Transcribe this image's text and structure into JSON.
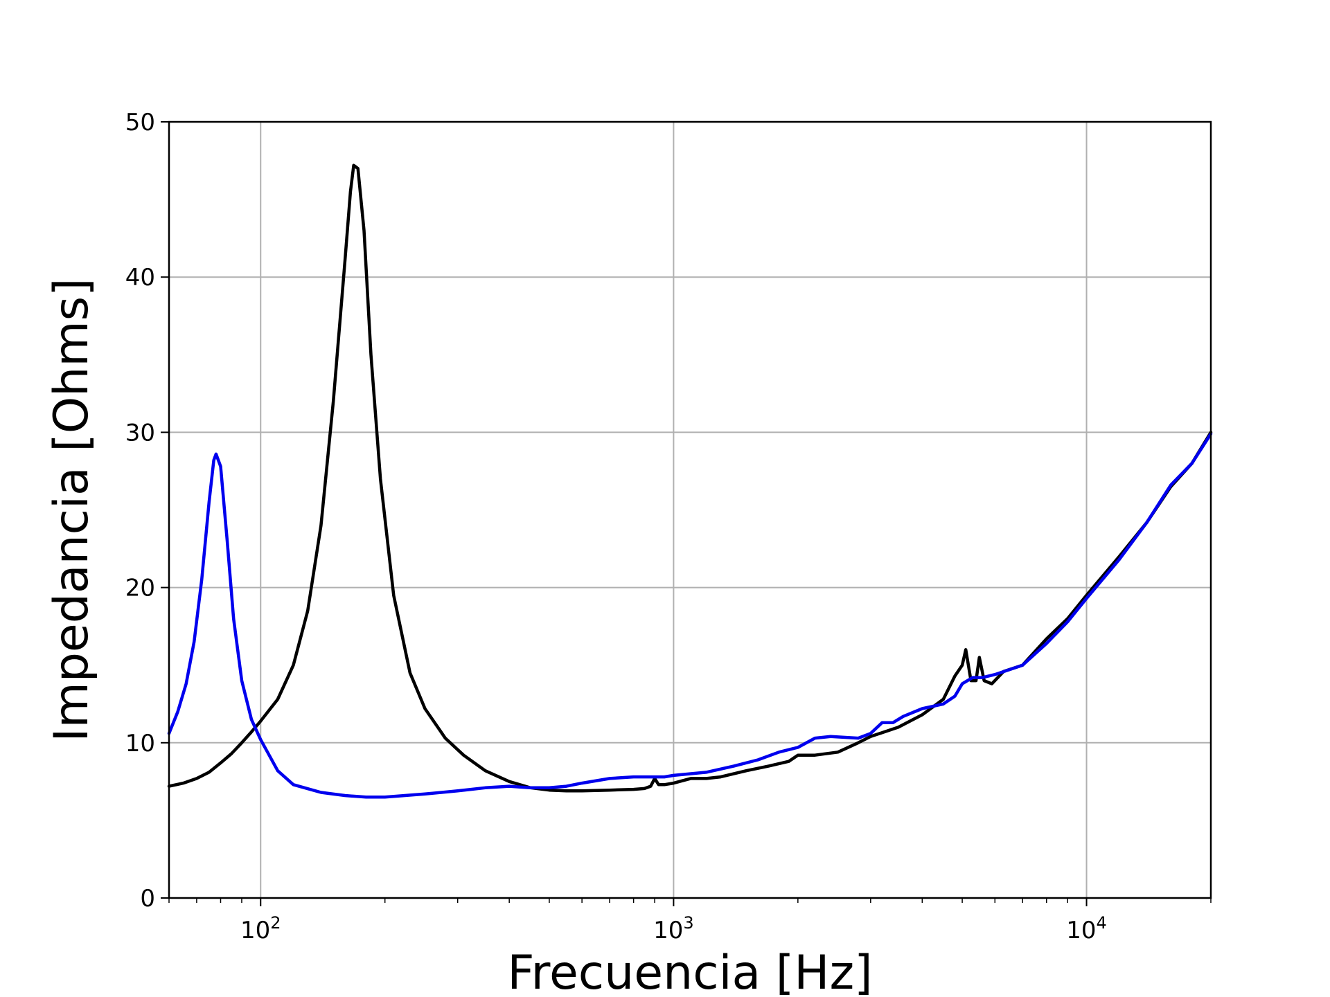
{
  "chart_data": {
    "type": "line",
    "title": "",
    "xlabel": "Frecuencia [Hz]",
    "ylabel": "Impedancia [Ohms]",
    "x_scale": "log",
    "xlim": [
      60,
      20000
    ],
    "ylim": [
      0,
      50
    ],
    "grid": true,
    "legend": "none",
    "x_ticks": [
      {
        "value": 100,
        "base": "10",
        "exp": "2"
      },
      {
        "value": 1000,
        "base": "10",
        "exp": "3"
      },
      {
        "value": 10000,
        "base": "10",
        "exp": "4"
      }
    ],
    "y_ticks": [
      {
        "value": 0,
        "label": "0"
      },
      {
        "value": 10,
        "label": "10"
      },
      {
        "value": 20,
        "label": "20"
      },
      {
        "value": 30,
        "label": "30"
      },
      {
        "value": 40,
        "label": "40"
      },
      {
        "value": 50,
        "label": "50"
      }
    ],
    "series": [
      {
        "color": "#000000",
        "points": [
          [
            60,
            7.2
          ],
          [
            65,
            7.4
          ],
          [
            70,
            7.7
          ],
          [
            75,
            8.1
          ],
          [
            80,
            8.7
          ],
          [
            85,
            9.3
          ],
          [
            90,
            10.0
          ],
          [
            95,
            10.7
          ],
          [
            100,
            11.4
          ],
          [
            110,
            12.8
          ],
          [
            120,
            15.0
          ],
          [
            130,
            18.5
          ],
          [
            140,
            24.0
          ],
          [
            150,
            32.0
          ],
          [
            160,
            41.0
          ],
          [
            165,
            45.5
          ],
          [
            168,
            47.2
          ],
          [
            172,
            47.0
          ],
          [
            178,
            43.0
          ],
          [
            185,
            35.0
          ],
          [
            195,
            27.0
          ],
          [
            210,
            19.5
          ],
          [
            230,
            14.5
          ],
          [
            250,
            12.2
          ],
          [
            280,
            10.3
          ],
          [
            310,
            9.2
          ],
          [
            350,
            8.2
          ],
          [
            400,
            7.5
          ],
          [
            450,
            7.1
          ],
          [
            500,
            6.95
          ],
          [
            550,
            6.9
          ],
          [
            600,
            6.9
          ],
          [
            700,
            6.95
          ],
          [
            800,
            7.0
          ],
          [
            850,
            7.05
          ],
          [
            880,
            7.2
          ],
          [
            900,
            7.7
          ],
          [
            920,
            7.3
          ],
          [
            950,
            7.3
          ],
          [
            1000,
            7.4
          ],
          [
            1100,
            7.7
          ],
          [
            1200,
            7.7
          ],
          [
            1300,
            7.8
          ],
          [
            1500,
            8.2
          ],
          [
            1700,
            8.5
          ],
          [
            1900,
            8.8
          ],
          [
            2000,
            9.2
          ],
          [
            2200,
            9.2
          ],
          [
            2500,
            9.4
          ],
          [
            2800,
            10.0
          ],
          [
            3000,
            10.4
          ],
          [
            3500,
            11.0
          ],
          [
            4000,
            11.8
          ],
          [
            4500,
            12.8
          ],
          [
            4800,
            14.3
          ],
          [
            5000,
            15.0
          ],
          [
            5100,
            16.0
          ],
          [
            5250,
            14.0
          ],
          [
            5400,
            14.0
          ],
          [
            5500,
            15.5
          ],
          [
            5650,
            14.0
          ],
          [
            5900,
            13.8
          ],
          [
            6300,
            14.6
          ],
          [
            7000,
            15.0
          ],
          [
            8000,
            16.7
          ],
          [
            9000,
            18.0
          ],
          [
            10000,
            19.5
          ],
          [
            12000,
            22.0
          ],
          [
            14000,
            24.2
          ],
          [
            16000,
            26.5
          ],
          [
            18000,
            28.0
          ],
          [
            20000,
            30.0
          ]
        ]
      },
      {
        "color": "#0000ee",
        "points": [
          [
            60,
            10.6
          ],
          [
            63,
            12.0
          ],
          [
            66,
            13.8
          ],
          [
            69,
            16.5
          ],
          [
            72,
            20.5
          ],
          [
            75,
            25.5
          ],
          [
            77,
            28.2
          ],
          [
            78,
            28.6
          ],
          [
            80,
            27.8
          ],
          [
            83,
            23.0
          ],
          [
            86,
            18.0
          ],
          [
            90,
            14.0
          ],
          [
            95,
            11.5
          ],
          [
            100,
            10.2
          ],
          [
            110,
            8.2
          ],
          [
            120,
            7.3
          ],
          [
            140,
            6.8
          ],
          [
            160,
            6.6
          ],
          [
            180,
            6.5
          ],
          [
            200,
            6.5
          ],
          [
            250,
            6.7
          ],
          [
            300,
            6.9
          ],
          [
            350,
            7.1
          ],
          [
            400,
            7.2
          ],
          [
            450,
            7.1
          ],
          [
            500,
            7.1
          ],
          [
            550,
            7.2
          ],
          [
            600,
            7.4
          ],
          [
            700,
            7.7
          ],
          [
            800,
            7.8
          ],
          [
            880,
            7.8
          ],
          [
            950,
            7.8
          ],
          [
            1000,
            7.9
          ],
          [
            1200,
            8.1
          ],
          [
            1400,
            8.5
          ],
          [
            1600,
            8.9
          ],
          [
            1800,
            9.4
          ],
          [
            2000,
            9.7
          ],
          [
            2200,
            10.3
          ],
          [
            2400,
            10.4
          ],
          [
            2800,
            10.3
          ],
          [
            3000,
            10.6
          ],
          [
            3200,
            11.3
          ],
          [
            3400,
            11.3
          ],
          [
            3600,
            11.7
          ],
          [
            4000,
            12.2
          ],
          [
            4500,
            12.5
          ],
          [
            4800,
            13.0
          ],
          [
            5000,
            13.8
          ],
          [
            5300,
            14.2
          ],
          [
            5600,
            14.2
          ],
          [
            6000,
            14.4
          ],
          [
            7000,
            15.0
          ],
          [
            8000,
            16.4
          ],
          [
            9000,
            17.8
          ],
          [
            10000,
            19.3
          ],
          [
            12000,
            21.8
          ],
          [
            14000,
            24.2
          ],
          [
            16000,
            26.6
          ],
          [
            18000,
            28.0
          ],
          [
            20000,
            29.9
          ]
        ]
      }
    ]
  }
}
